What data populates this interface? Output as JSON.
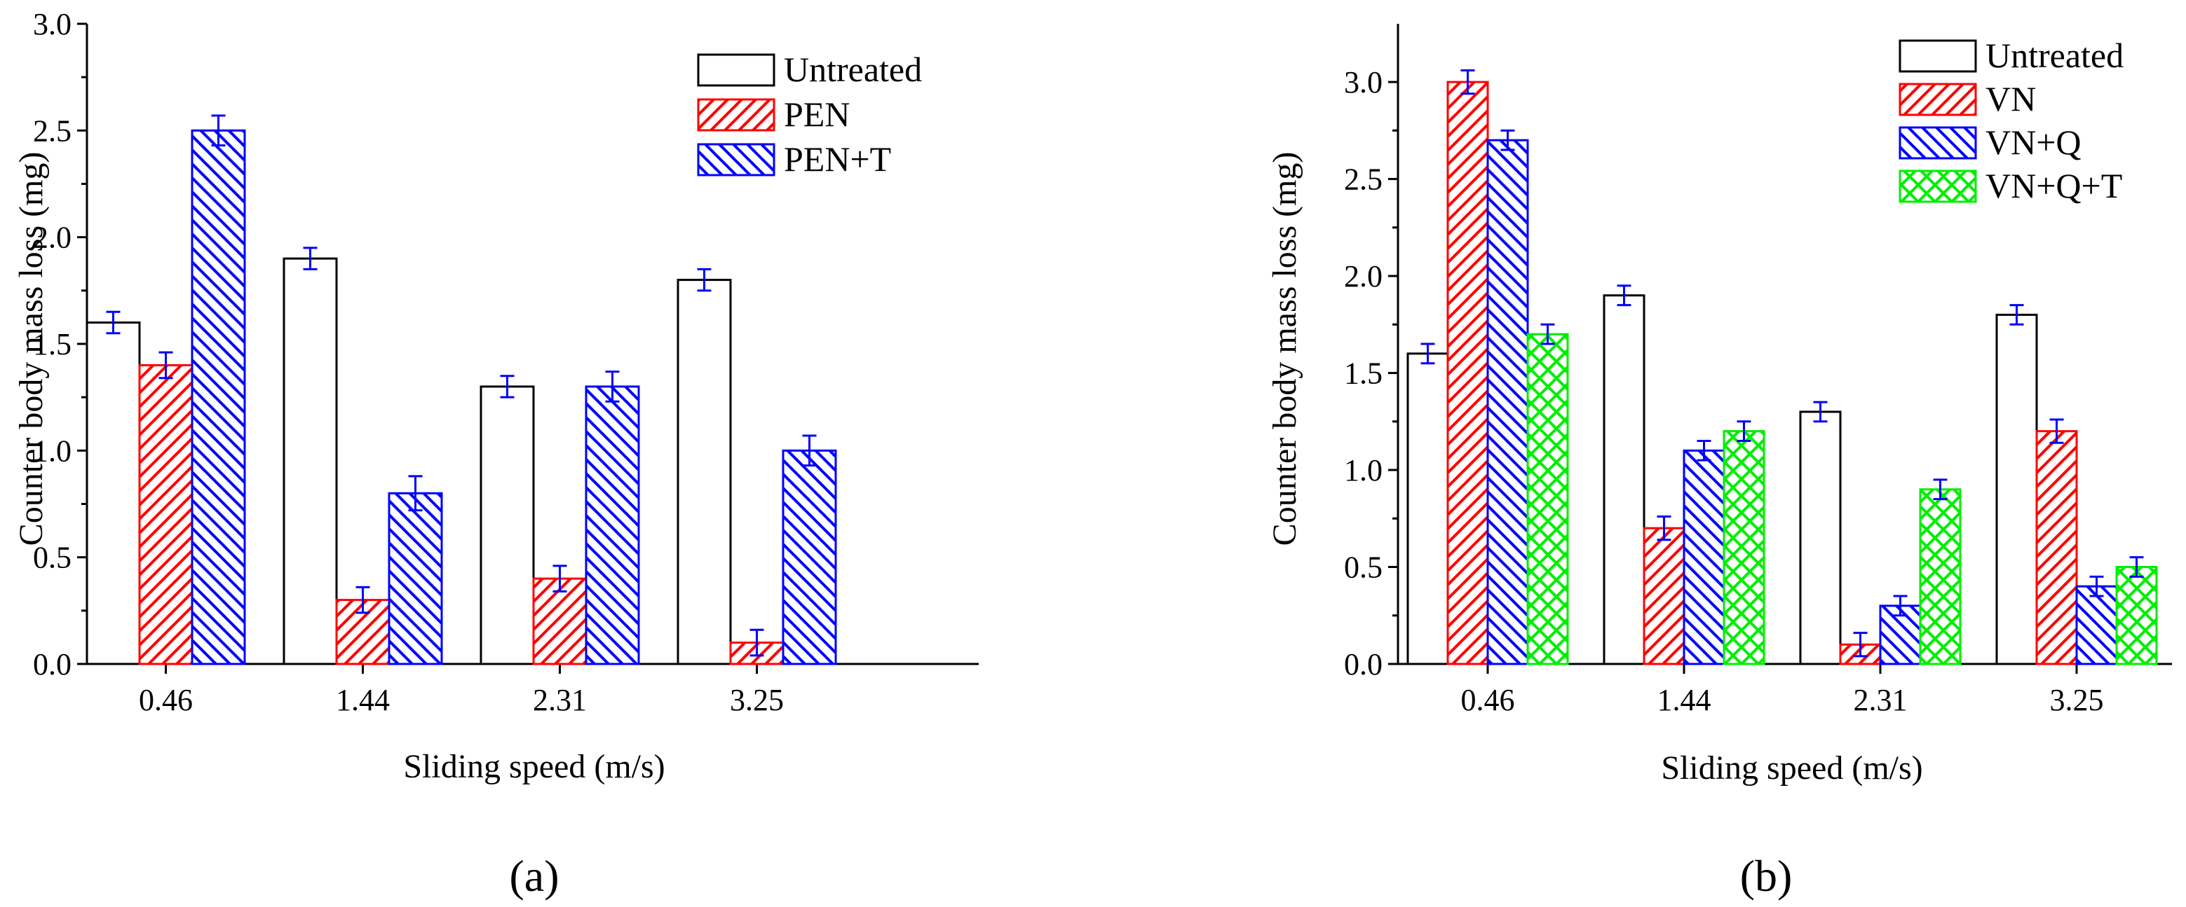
{
  "chart_data": [
    {
      "type": "bar",
      "panel_label": "(a)",
      "xlabel": "Sliding speed (m/s)",
      "ylabel": "Counter body mass loss (mg)",
      "categories": [
        "0.46",
        "1.44",
        "2.31",
        "3.25"
      ],
      "ylim": [
        0,
        3.0
      ],
      "yticks": [
        "0.0",
        "0.5",
        "1.0",
        "1.5",
        "2.0",
        "2.5",
        "3.0"
      ],
      "legend_position": "top-right",
      "series": [
        {
          "name": "Untreated",
          "values": [
            1.6,
            1.9,
            1.3,
            1.8
          ],
          "errors": [
            0.05,
            0.05,
            0.05,
            0.05
          ],
          "color": "#000000",
          "pattern": "none"
        },
        {
          "name": "PEN",
          "values": [
            1.4,
            0.3,
            0.4,
            0.1
          ],
          "errors": [
            0.06,
            0.06,
            0.06,
            0.06
          ],
          "color": "#ff0000",
          "pattern": "hatch-right"
        },
        {
          "name": "PEN+T",
          "values": [
            2.5,
            0.8,
            1.3,
            1.0
          ],
          "errors": [
            0.07,
            0.08,
            0.07,
            0.07
          ],
          "color": "#0000ff",
          "pattern": "hatch-left"
        }
      ]
    },
    {
      "type": "bar",
      "panel_label": "(b)",
      "xlabel": "Sliding speed (m/s)",
      "ylabel": "Counter body mass loss (mg)",
      "categories": [
        "0.46",
        "1.44",
        "2.31",
        "3.25"
      ],
      "ylim": [
        0,
        3.3
      ],
      "yticks": [
        "0.0",
        "0.5",
        "1.0",
        "1.5",
        "2.0",
        "2.5",
        "3.0"
      ],
      "legend_position": "top-right",
      "series": [
        {
          "name": "Untreated",
          "values": [
            1.6,
            1.9,
            1.3,
            1.8
          ],
          "errors": [
            0.05,
            0.05,
            0.05,
            0.05
          ],
          "color": "#000000",
          "pattern": "none"
        },
        {
          "name": "VN",
          "values": [
            3.0,
            0.7,
            0.1,
            1.2
          ],
          "errors": [
            0.06,
            0.06,
            0.06,
            0.06
          ],
          "color": "#ff0000",
          "pattern": "hatch-right"
        },
        {
          "name": "VN+Q",
          "values": [
            2.7,
            1.1,
            0.3,
            0.4
          ],
          "errors": [
            0.05,
            0.05,
            0.05,
            0.05
          ],
          "color": "#0000ff",
          "pattern": "hatch-left"
        },
        {
          "name": "VN+Q+T",
          "values": [
            1.7,
            1.2,
            0.9,
            0.5
          ],
          "errors": [
            0.05,
            0.05,
            0.05,
            0.05
          ],
          "color": "#00ee00",
          "pattern": "crosshatch"
        }
      ]
    }
  ]
}
